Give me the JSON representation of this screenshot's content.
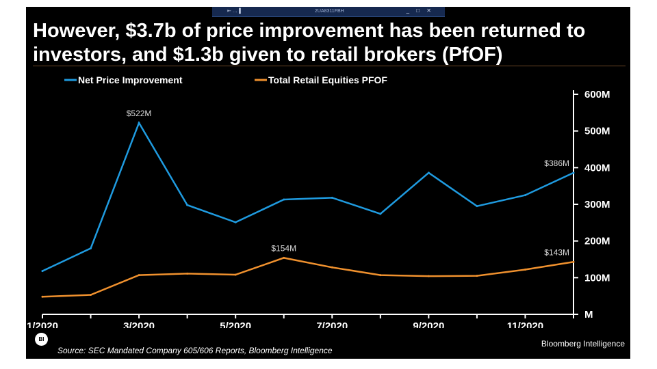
{
  "window": {
    "title_bar_left": "⇤ …▐",
    "title_bar_text": "2UA8311FBH",
    "title_bar_controls": "_ □ ✕"
  },
  "slide": {
    "title": "However, $3.7b of price improvement has been returned to investors, and $1.3b given to retail brokers (PfOF)",
    "source": "Source: SEC Mandated Company 605/606 Reports, Bloomberg Intelligence",
    "brand": "Bloomberg Intelligence",
    "logo_text": "BI"
  },
  "colors": {
    "background": "#000000",
    "series_1": "#1f9be0",
    "series_2": "#f0912e",
    "axis": "#ffffff"
  },
  "chart_data": {
    "type": "line",
    "title": "",
    "x": [
      "1/2020",
      "2/2020",
      "3/2020",
      "4/2020",
      "5/2020",
      "6/2020",
      "7/2020",
      "8/2020",
      "9/2020",
      "10/2020",
      "11/2020",
      "12/2020"
    ],
    "x_tick_labels": [
      "1/2020",
      "3/2020",
      "5/2020",
      "7/2020",
      "9/2020",
      "11/2020"
    ],
    "y_tick_labels": [
      "M",
      "100M",
      "200M",
      "300M",
      "400M",
      "500M",
      "600M"
    ],
    "y_ticks": [
      0,
      100,
      200,
      300,
      400,
      500,
      600
    ],
    "ylim": [
      0,
      600
    ],
    "y_axis_side": "right",
    "legend_position": "top-left",
    "series": [
      {
        "name": "Net Price Improvement",
        "color": "#1f9be0",
        "values": [
          118,
          180,
          522,
          298,
          251,
          313,
          318,
          274,
          386,
          295,
          325,
          386
        ]
      },
      {
        "name": "Total Retail Equities PFOF",
        "color": "#f0912e",
        "values": [
          48,
          53,
          107,
          111,
          108,
          154,
          128,
          107,
          104,
          105,
          122,
          143
        ]
      }
    ],
    "annotations": [
      {
        "series": 0,
        "index": 2,
        "text": "$522M"
      },
      {
        "series": 0,
        "index": 11,
        "text": "$386M"
      },
      {
        "series": 1,
        "index": 5,
        "text": "$154M"
      },
      {
        "series": 1,
        "index": 11,
        "text": "$143M"
      }
    ]
  }
}
